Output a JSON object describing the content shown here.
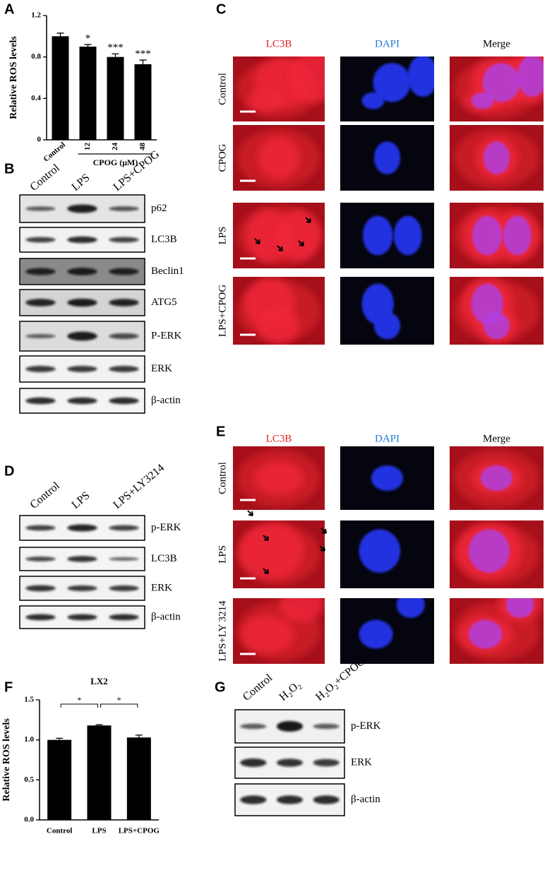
{
  "panel_labels": {
    "a": "A",
    "b": "B",
    "c": "C",
    "d": "D",
    "e": "E",
    "f": "F",
    "g": "G"
  },
  "chart_data": [
    {
      "type": "bar",
      "ylabel": "Relative ROS levels",
      "categories": [
        "Control",
        "12",
        "24",
        "48"
      ],
      "group_label": "CPOG (μM)",
      "values": [
        1.0,
        0.9,
        0.8,
        0.73
      ],
      "errors": [
        0.03,
        0.02,
        0.03,
        0.04
      ],
      "annotations": [
        "*",
        "***",
        "***"
      ],
      "color": "#000000",
      "ylim": [
        0,
        1.2
      ],
      "yticks": [
        0,
        0.4,
        0.8,
        1.2
      ]
    },
    {
      "type": "bar",
      "title": "LX2",
      "ylabel": "Relative ROS levels",
      "categories": [
        "Control",
        "LPS",
        "LPS+CPOG"
      ],
      "values": [
        1.0,
        1.18,
        1.03
      ],
      "errors": [
        0.02,
        0.01,
        0.03
      ],
      "brackets": [
        "*",
        "*"
      ],
      "color": "#000000",
      "ylim": [
        0,
        1.5
      ],
      "yticks": [
        {
          "value": 0,
          "label": "0.0"
        },
        {
          "value": 0.5,
          "label": "0.5"
        },
        {
          "value": 1,
          "label": "1.0"
        },
        {
          "value": 1.5,
          "label": "1.5"
        }
      ]
    }
  ],
  "blot_b": {
    "lanes": [
      "Control",
      "LPS",
      "LPS+CPOG"
    ],
    "proteins": [
      "p62",
      "LC3B",
      "Beclin1",
      "ATG5",
      "P-ERK",
      "ERK",
      "β-actin"
    ]
  },
  "if_c": {
    "channels": [
      "LC3B",
      "DAPI",
      "Merge"
    ],
    "conditions": [
      "Control",
      "CPOG",
      "LPS",
      "LPS+CPOG"
    ]
  },
  "blot_d": {
    "lanes": [
      "Control",
      "LPS",
      "LPS+LY3214"
    ],
    "proteins": [
      "p-ERK",
      "LC3B",
      "ERK",
      "β-actin"
    ]
  },
  "if_e": {
    "channels": [
      "LC3B",
      "DAPI",
      "Merge"
    ],
    "conditions": [
      "Control",
      "LPS",
      "LPS+LY 3214"
    ]
  },
  "blot_g": {
    "lanes": [
      "Control",
      "H₂O₂",
      "H₂O₂+CPOG"
    ],
    "proteins": [
      "p-ERK",
      "ERK",
      "β-actin"
    ]
  }
}
